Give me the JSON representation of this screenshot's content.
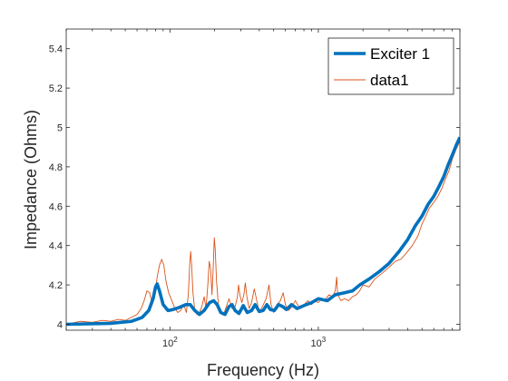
{
  "chart_data": {
    "type": "line",
    "title": "",
    "xlabel": "Frequency (Hz)",
    "ylabel": "Impedance (Ohms)",
    "x_scale": "log",
    "xlim": [
      20,
      9000
    ],
    "ylim": [
      3.97,
      5.5
    ],
    "x_ticks": [
      {
        "value": 100,
        "label": "10",
        "exp": "2"
      },
      {
        "value": 1000,
        "label": "10",
        "exp": "3"
      }
    ],
    "y_ticks": [
      {
        "value": 4.0,
        "label": "4"
      },
      {
        "value": 4.2,
        "label": "4.2"
      },
      {
        "value": 4.4,
        "label": "4.4"
      },
      {
        "value": 4.6,
        "label": "4.6"
      },
      {
        "value": 4.8,
        "label": "4.8"
      },
      {
        "value": 5.0,
        "label": "5"
      },
      {
        "value": 5.2,
        "label": "5.2"
      },
      {
        "value": 5.4,
        "label": "5.4"
      }
    ],
    "grid": false,
    "legend_position": "top-right",
    "series": [
      {
        "name": "Exciter 1",
        "color": "#0072BD",
        "line_width": "thick",
        "points": [
          [
            20,
            4.0
          ],
          [
            40,
            4.005
          ],
          [
            55,
            4.015
          ],
          [
            65,
            4.035
          ],
          [
            72,
            4.07
          ],
          [
            77,
            4.13
          ],
          [
            80,
            4.19
          ],
          [
            82,
            4.205
          ],
          [
            85,
            4.17
          ],
          [
            90,
            4.1
          ],
          [
            97,
            4.07
          ],
          [
            105,
            4.075
          ],
          [
            115,
            4.085
          ],
          [
            128,
            4.1
          ],
          [
            137,
            4.1
          ],
          [
            147,
            4.07
          ],
          [
            158,
            4.05
          ],
          [
            170,
            4.07
          ],
          [
            185,
            4.11
          ],
          [
            197,
            4.12
          ],
          [
            208,
            4.1
          ],
          [
            220,
            4.06
          ],
          [
            235,
            4.05
          ],
          [
            250,
            4.09
          ],
          [
            262,
            4.1
          ],
          [
            275,
            4.07
          ],
          [
            292,
            4.055
          ],
          [
            312,
            4.095
          ],
          [
            332,
            4.06
          ],
          [
            355,
            4.07
          ],
          [
            375,
            4.1
          ],
          [
            400,
            4.065
          ],
          [
            425,
            4.07
          ],
          [
            450,
            4.1
          ],
          [
            475,
            4.075
          ],
          [
            505,
            4.07
          ],
          [
            540,
            4.1
          ],
          [
            575,
            4.09
          ],
          [
            610,
            4.075
          ],
          [
            660,
            4.1
          ],
          [
            720,
            4.08
          ],
          [
            800,
            4.095
          ],
          [
            900,
            4.11
          ],
          [
            1000,
            4.13
          ],
          [
            1150,
            4.12
          ],
          [
            1300,
            4.15
          ],
          [
            1500,
            4.16
          ],
          [
            1700,
            4.17
          ],
          [
            1900,
            4.2
          ],
          [
            2200,
            4.23
          ],
          [
            2600,
            4.27
          ],
          [
            3000,
            4.31
          ],
          [
            3500,
            4.37
          ],
          [
            4000,
            4.43
          ],
          [
            4500,
            4.5
          ],
          [
            5000,
            4.55
          ],
          [
            5500,
            4.61
          ],
          [
            6000,
            4.65
          ],
          [
            6500,
            4.7
          ],
          [
            7000,
            4.75
          ],
          [
            7500,
            4.81
          ],
          [
            8000,
            4.86
          ],
          [
            8500,
            4.91
          ],
          [
            9000,
            4.95
          ]
        ]
      },
      {
        "name": "data1",
        "color": "#D95319",
        "line_width": "thin",
        "points": [
          [
            20,
            4.0
          ],
          [
            25,
            4.015
          ],
          [
            30,
            4.01
          ],
          [
            35,
            4.02
          ],
          [
            40,
            4.015
          ],
          [
            45,
            4.025
          ],
          [
            50,
            4.02
          ],
          [
            55,
            4.035
          ],
          [
            60,
            4.05
          ],
          [
            64,
            4.08
          ],
          [
            67,
            4.12
          ],
          [
            70,
            4.17
          ],
          [
            73,
            4.16
          ],
          [
            76,
            4.1
          ],
          [
            79,
            4.14
          ],
          [
            82,
            4.24
          ],
          [
            85,
            4.3
          ],
          [
            88,
            4.33
          ],
          [
            91,
            4.3
          ],
          [
            94,
            4.22
          ],
          [
            98,
            4.16
          ],
          [
            103,
            4.12
          ],
          [
            108,
            4.08
          ],
          [
            113,
            4.06
          ],
          [
            118,
            4.07
          ],
          [
            124,
            4.1
          ],
          [
            129,
            4.06
          ],
          [
            133,
            4.15
          ],
          [
            136,
            4.31
          ],
          [
            138,
            4.37
          ],
          [
            140,
            4.3
          ],
          [
            143,
            4.16
          ],
          [
            147,
            4.07
          ],
          [
            152,
            4.05
          ],
          [
            158,
            4.06
          ],
          [
            164,
            4.09
          ],
          [
            170,
            4.14
          ],
          [
            175,
            4.08
          ],
          [
            180,
            4.2
          ],
          [
            184,
            4.32
          ],
          [
            188,
            4.28
          ],
          [
            192,
            4.15
          ],
          [
            196,
            4.3
          ],
          [
            199,
            4.44
          ],
          [
            202,
            4.38
          ],
          [
            206,
            4.22
          ],
          [
            212,
            4.1
          ],
          [
            220,
            4.07
          ],
          [
            230,
            4.05
          ],
          [
            240,
            4.09
          ],
          [
            250,
            4.13
          ],
          [
            262,
            4.08
          ],
          [
            275,
            4.09
          ],
          [
            285,
            4.14
          ],
          [
            290,
            4.2
          ],
          [
            296,
            4.15
          ],
          [
            305,
            4.11
          ],
          [
            315,
            4.15
          ],
          [
            322,
            4.21
          ],
          [
            330,
            4.14
          ],
          [
            342,
            4.08
          ],
          [
            355,
            4.11
          ],
          [
            370,
            4.18
          ],
          [
            385,
            4.12
          ],
          [
            400,
            4.06
          ],
          [
            420,
            4.09
          ],
          [
            445,
            4.13
          ],
          [
            465,
            4.2
          ],
          [
            480,
            4.1
          ],
          [
            500,
            4.06
          ],
          [
            525,
            4.1
          ],
          [
            555,
            4.12
          ],
          [
            580,
            4.16
          ],
          [
            600,
            4.1
          ],
          [
            630,
            4.07
          ],
          [
            665,
            4.09
          ],
          [
            700,
            4.12
          ],
          [
            750,
            4.08
          ],
          [
            800,
            4.1
          ],
          [
            850,
            4.12
          ],
          [
            900,
            4.1
          ],
          [
            950,
            4.12
          ],
          [
            1000,
            4.11
          ],
          [
            1050,
            4.13
          ],
          [
            1100,
            4.12
          ],
          [
            1180,
            4.15
          ],
          [
            1250,
            4.14
          ],
          [
            1300,
            4.17
          ],
          [
            1330,
            4.24
          ],
          [
            1350,
            4.15
          ],
          [
            1420,
            4.12
          ],
          [
            1500,
            4.13
          ],
          [
            1600,
            4.12
          ],
          [
            1700,
            4.14
          ],
          [
            1800,
            4.15
          ],
          [
            1900,
            4.17
          ],
          [
            2000,
            4.2
          ],
          [
            2200,
            4.19
          ],
          [
            2400,
            4.23
          ],
          [
            2700,
            4.26
          ],
          [
            3000,
            4.29
          ],
          [
            3300,
            4.32
          ],
          [
            3600,
            4.33
          ],
          [
            4000,
            4.37
          ],
          [
            4300,
            4.4
          ],
          [
            4700,
            4.45
          ],
          [
            5000,
            4.51
          ],
          [
            5300,
            4.55
          ],
          [
            5600,
            4.59
          ],
          [
            6000,
            4.62
          ],
          [
            6400,
            4.65
          ],
          [
            6800,
            4.69
          ],
          [
            7200,
            4.74
          ],
          [
            7600,
            4.78
          ],
          [
            8000,
            4.84
          ],
          [
            8500,
            4.89
          ],
          [
            9000,
            4.93
          ]
        ]
      }
    ]
  }
}
